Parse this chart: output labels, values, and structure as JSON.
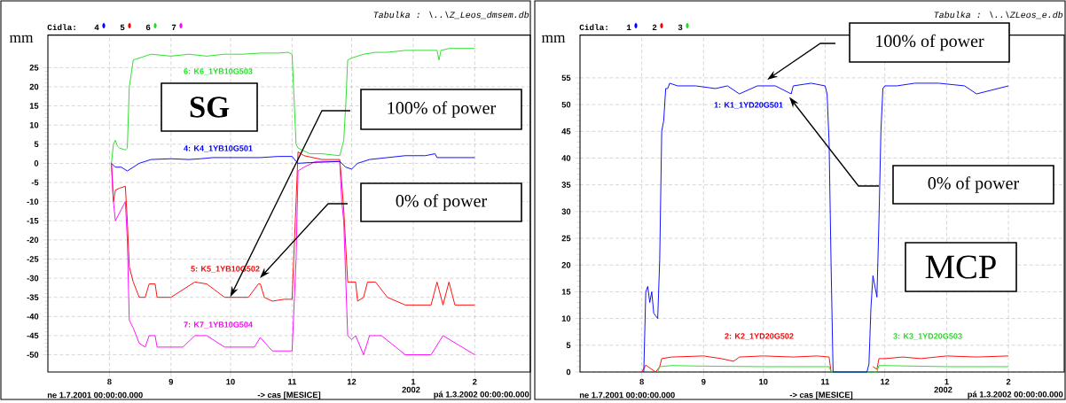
{
  "chart_data": [
    {
      "type": "line",
      "ylabel": "mm",
      "xlabel": "-> cas [MESICE]",
      "legend": "top left",
      "legend_title": "Cidla:",
      "grid": true,
      "xlim": [
        "2001-07-01",
        "2002-03-01"
      ],
      "xticks": [
        {
          "value": "2001-08-01",
          "label": "8"
        },
        {
          "value": "2001-09-01",
          "label": "9"
        },
        {
          "value": "2001-10-01",
          "label": "10"
        },
        {
          "value": "2001-11-01",
          "label": "11"
        },
        {
          "value": "2001-12-01",
          "label": "12"
        },
        {
          "value": "2002-01-01",
          "label": "1"
        },
        {
          "value": "2002-02-01",
          "label": "2"
        }
      ],
      "ylim": [
        -54.5,
        33.5
      ],
      "yticks": [
        -50,
        -45,
        -40,
        -35,
        -30,
        -25,
        -20,
        -15,
        -10,
        -5,
        0,
        5,
        10,
        15,
        20,
        25
      ],
      "series": [
        {
          "name": "4",
          "color": "#0000ff",
          "x": [
            "2001-08-02",
            "2001-08-04",
            "2001-08-07",
            "2001-08-10",
            "2001-08-13",
            "2001-08-16",
            "2001-08-22",
            "2001-09-01",
            "2001-09-10",
            "2001-09-16",
            "2001-09-22",
            "2001-10-01",
            "2001-10-10",
            "2001-10-16",
            "2001-10-25",
            "2001-11-01",
            "2001-11-03",
            "2001-11-04",
            "2001-11-10",
            "2001-11-16",
            "2001-11-25",
            "2001-11-28",
            "2001-12-01",
            "2001-12-04",
            "2001-12-10",
            "2001-12-19",
            "2001-12-28",
            "2002-01-07",
            "2002-01-12",
            "2002-01-13",
            "2002-01-16",
            "2002-02-01"
          ],
          "values": [
            0,
            -1,
            -1,
            -2,
            -1,
            0,
            1,
            1.2,
            1,
            1.2,
            1.5,
            1.5,
            1.5,
            1.5,
            1.8,
            1.8,
            0.5,
            0,
            0.2,
            0.3,
            0.5,
            -1,
            -1.5,
            0,
            1,
            1.5,
            2,
            2,
            2.5,
            1.5,
            1.5,
            1.5
          ]
        },
        {
          "name": "5",
          "color": "#ff0000",
          "x": [
            "2001-08-02",
            "2001-08-03",
            "2001-08-04",
            "2001-08-06",
            "2001-08-09",
            "2001-08-10",
            "2001-08-11",
            "2001-08-13",
            "2001-08-16",
            "2001-08-19",
            "2001-08-21",
            "2001-08-24",
            "2001-08-25",
            "2001-09-01",
            "2001-09-10",
            "2001-09-13",
            "2001-09-19",
            "2001-09-28",
            "2001-10-01",
            "2001-10-10",
            "2001-10-15",
            "2001-10-16",
            "2001-10-18",
            "2001-10-22",
            "2001-10-28",
            "2001-11-01",
            "2001-11-03",
            "2001-11-04",
            "2001-11-07",
            "2001-11-16",
            "2001-11-25",
            "2001-11-26",
            "2001-11-27",
            "2001-11-29",
            "2001-12-01",
            "2001-12-03",
            "2001-12-04",
            "2001-12-07",
            "2001-12-09",
            "2001-12-13",
            "2001-12-19",
            "2001-12-28",
            "2002-01-10",
            "2002-01-13",
            "2002-01-16",
            "2002-01-19",
            "2002-01-22",
            "2002-02-01"
          ],
          "values": [
            0,
            -10,
            -7,
            -6.5,
            -6,
            -15,
            -27,
            -31,
            -35,
            -35,
            -31.5,
            -31.5,
            -35,
            -35,
            -32,
            -31,
            -31.5,
            -35,
            -35,
            -35,
            -31.5,
            -31.5,
            -35,
            -36,
            -35.5,
            -35.5,
            -10,
            3,
            2,
            1,
            1,
            -5,
            -12,
            -31,
            -31,
            -31,
            -36,
            -35,
            -31,
            -31,
            -35,
            -37,
            -37,
            -31,
            -37,
            -31,
            -37,
            -37
          ]
        },
        {
          "name": "6",
          "color": "#22dd22",
          "x": [
            "2001-08-02",
            "2001-08-03",
            "2001-08-04",
            "2001-08-05",
            "2001-08-06",
            "2001-08-09",
            "2001-08-10",
            "2001-08-11",
            "2001-08-13",
            "2001-08-16",
            "2001-08-22",
            "2001-09-01",
            "2001-09-10",
            "2001-09-19",
            "2001-09-28",
            "2001-10-07",
            "2001-10-16",
            "2001-10-25",
            "2001-10-30",
            "2001-11-01",
            "2001-11-03",
            "2001-11-04",
            "2001-11-10",
            "2001-11-16",
            "2001-11-25",
            "2001-11-27",
            "2001-11-28",
            "2001-11-29",
            "2001-12-01",
            "2001-12-07",
            "2001-12-13",
            "2001-12-19",
            "2001-12-28",
            "2002-01-07",
            "2002-01-13",
            "2002-01-14",
            "2002-01-15",
            "2002-01-19",
            "2002-02-01"
          ],
          "values": [
            0,
            5,
            6,
            4.5,
            4,
            3.5,
            4,
            20,
            27,
            27.5,
            28.5,
            28,
            28.5,
            28,
            28.5,
            28.5,
            28.8,
            28.8,
            29,
            28.5,
            5,
            4,
            2.5,
            2.5,
            2,
            6,
            15,
            27,
            27.5,
            28.5,
            29,
            29,
            29.5,
            29.5,
            29.5,
            27,
            29.5,
            30,
            30
          ]
        },
        {
          "name": "7",
          "color": "#ff00ff",
          "x": [
            "2001-08-02",
            "2001-08-03",
            "2001-08-04",
            "2001-08-07",
            "2001-08-09",
            "2001-08-10",
            "2001-08-11",
            "2001-08-13",
            "2001-08-16",
            "2001-08-19",
            "2001-08-21",
            "2001-08-24",
            "2001-08-25",
            "2001-09-07",
            "2001-09-13",
            "2001-09-19",
            "2001-09-28",
            "2001-10-01",
            "2001-10-13",
            "2001-10-16",
            "2001-10-22",
            "2001-10-28",
            "2001-11-01",
            "2001-11-03",
            "2001-11-04",
            "2001-11-07",
            "2001-11-13",
            "2001-11-25",
            "2001-11-26",
            "2001-11-27",
            "2001-11-29",
            "2001-12-01",
            "2001-12-03",
            "2001-12-07",
            "2001-12-10",
            "2001-12-16",
            "2001-12-28",
            "2002-01-10",
            "2002-01-16",
            "2002-02-01"
          ],
          "values": [
            0,
            -10,
            -15,
            -12,
            -10,
            -20,
            -41,
            -43,
            -47,
            -48,
            -45,
            -45,
            -48,
            -48,
            -45,
            -45,
            -48,
            -48,
            -48,
            -45.5,
            -49,
            -49,
            -49,
            -25,
            -2,
            -1,
            0.5,
            0.5,
            -10,
            -15,
            -45,
            -46,
            -45,
            -50,
            -45,
            -45,
            -50,
            -50,
            -45,
            -50
          ]
        }
      ],
      "annotations": [
        "Tabulka : \\..\\Z_Leos_dmsem.db",
        "ne 1.7.2001 00:00:00.000",
        "pá 1.3.2002 00:00:00.000",
        "2002",
        "SG",
        "4: K4_1YB10G501",
        "5: K5_1YB10G502",
        "6: K6_1YB10G503",
        "7: K7_1YB10G504",
        "100% of power",
        "0% of power"
      ]
    },
    {
      "type": "line",
      "ylabel": "mm",
      "xlabel": "-> cas [MESICE]",
      "legend": "top left",
      "legend_title": "Cidla:",
      "grid": true,
      "xlim": [
        "2001-07-01",
        "2002-03-01"
      ],
      "xticks": [
        {
          "value": "2001-08-01",
          "label": "8"
        },
        {
          "value": "2001-09-01",
          "label": "9"
        },
        {
          "value": "2001-10-01",
          "label": "10"
        },
        {
          "value": "2001-11-01",
          "label": "11"
        },
        {
          "value": "2001-12-01",
          "label": "12"
        },
        {
          "value": "2002-01-01",
          "label": "1"
        },
        {
          "value": "2002-02-01",
          "label": "2"
        }
      ],
      "ylim": [
        0,
        63
      ],
      "yticks": [
        0,
        5,
        10,
        15,
        20,
        25,
        30,
        35,
        40,
        45,
        50,
        55
      ],
      "series": [
        {
          "name": "1",
          "color": "#0000ff",
          "x": [
            "2001-08-02",
            "2001-08-03",
            "2001-08-04",
            "2001-08-05",
            "2001-08-06",
            "2001-08-07",
            "2001-08-08",
            "2001-08-09",
            "2001-08-10",
            "2001-08-11",
            "2001-08-12",
            "2001-08-13",
            "2001-08-14",
            "2001-08-15",
            "2001-08-19",
            "2001-08-28",
            "2001-09-07",
            "2001-09-13",
            "2001-09-19",
            "2001-09-28",
            "2001-10-07",
            "2001-10-15",
            "2001-10-16",
            "2001-10-25",
            "2001-11-01",
            "2001-11-02",
            "2001-11-03",
            "2001-11-04",
            "2001-11-05",
            "2001-11-22",
            "2001-11-23",
            "2001-11-24",
            "2001-11-25",
            "2001-11-27",
            "2001-11-28",
            "2001-11-29",
            "2001-11-30",
            "2001-12-01",
            "2001-12-07",
            "2001-12-16",
            "2001-12-28",
            "2002-01-10",
            "2002-01-16",
            "2002-02-01"
          ],
          "values": [
            0,
            15,
            16,
            13,
            15,
            11,
            10.5,
            10,
            21,
            45,
            47,
            53,
            53,
            54,
            53.5,
            53.5,
            53,
            53.5,
            52,
            53.5,
            53.5,
            52,
            53.5,
            54,
            53.5,
            52,
            43,
            20,
            0,
            0,
            1.5,
            12,
            18,
            14,
            28,
            45,
            53,
            53.5,
            53.5,
            54,
            54,
            53.5,
            52,
            53.5
          ]
        },
        {
          "name": "2",
          "color": "#ff0000",
          "x": [
            "2001-08-01",
            "2001-08-03",
            "2001-08-06",
            "2001-08-08",
            "2001-08-10",
            "2001-08-11",
            "2001-08-16",
            "2001-09-01",
            "2001-09-10",
            "2001-09-16",
            "2001-09-19",
            "2001-10-01",
            "2001-10-16",
            "2001-10-28",
            "2001-11-03",
            "2001-11-04",
            "2001-11-13",
            "2001-11-25",
            "2001-11-27",
            "2001-11-28",
            "2001-12-01",
            "2001-12-10",
            "2001-12-19",
            "2002-01-01",
            "2002-01-16",
            "2002-02-01"
          ],
          "values": [
            0,
            1.3,
            0.5,
            0,
            1,
            2.5,
            2.8,
            3,
            2.5,
            2,
            2.8,
            3,
            2.8,
            3,
            2.8,
            0,
            null,
            1,
            0.5,
            2.5,
            2.5,
            2.8,
            2.5,
            3,
            2.8,
            3
          ]
        },
        {
          "name": "3",
          "color": "#22dd22",
          "x": [
            "2001-08-09",
            "2001-08-10",
            "2001-08-16",
            "2001-09-01",
            "2001-10-01",
            "2001-11-01",
            "2001-11-03",
            "2001-11-04",
            "2001-11-27",
            "2001-11-28",
            "2001-12-01",
            "2002-01-01",
            "2002-02-01"
          ],
          "values": [
            0,
            1,
            1.2,
            1.1,
            1,
            1,
            1,
            0,
            0,
            1.2,
            1.2,
            1,
            1
          ]
        }
      ],
      "annotations": [
        "Tabulka : \\..\\ZLeos_e.db",
        "ne 1.7.2001 00:00:00.000",
        "pá 1.3.2002 00:00:00.000",
        "2002",
        "MCP",
        "1: K1_1YD20G501",
        "2: K2_1YD20G502",
        "3: K3_1YD20G503",
        "100% of power",
        "0% of power"
      ]
    }
  ]
}
